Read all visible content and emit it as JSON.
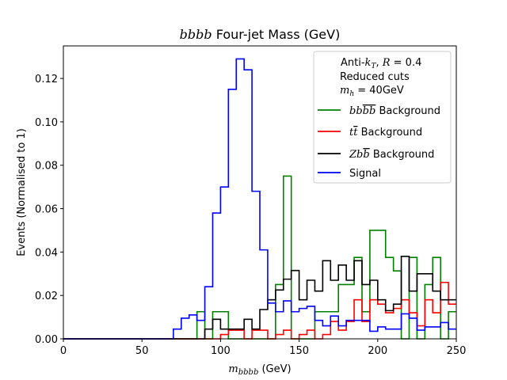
{
  "chart_data": {
    "type": "line",
    "drawstyle": "steps",
    "title": {
      "italic": "bbbb",
      "rest": " Four-jet Mass (GeV)"
    },
    "xlabel": {
      "italic": "m",
      "sub": "bbbb",
      "rest": " (GeV)"
    },
    "ylabel": "Events (Normalised to 1)",
    "xlim": [
      0,
      250
    ],
    "ylim": [
      0,
      0.135
    ],
    "xticks": [
      0,
      50,
      100,
      150,
      200,
      250
    ],
    "xtick_labels": [
      "0",
      "50",
      "100",
      "150",
      "200",
      "250"
    ],
    "yticks": [
      0.0,
      0.02,
      0.04,
      0.06,
      0.08,
      0.1,
      0.12
    ],
    "ytick_labels": [
      "0.00",
      "0.02",
      "0.04",
      "0.06",
      "0.08",
      "0.10",
      "0.12"
    ],
    "grid": false,
    "legend_position": "top-right",
    "annotation": {
      "line1": "Anti-k_T, R = 0.4",
      "line2": "Reduced cuts",
      "line3": "m_h = 40GeV"
    },
    "bin_width": 5,
    "bin_edges_start": 0,
    "series": [
      {
        "name": "bbbb Background",
        "color": "#008000",
        "values": [
          0,
          0,
          0,
          0,
          0,
          0,
          0,
          0,
          0,
          0,
          0,
          0,
          0,
          0,
          0,
          0,
          0,
          0.0125,
          0,
          0.0125,
          0.0125,
          0,
          0,
          0,
          0,
          0,
          0,
          0.025,
          0.075,
          0,
          0,
          0,
          0.0125,
          0.0125,
          0.0125,
          0.025,
          0.025,
          0.0375,
          0.0125,
          0.05,
          0.05,
          0.0375,
          0.0313,
          0,
          0.0375,
          0,
          0.025,
          0.0375,
          0,
          0.0125
        ]
      },
      {
        "name": "tt Background",
        "color": "#ff0000",
        "values": [
          0,
          0,
          0,
          0,
          0,
          0,
          0,
          0,
          0,
          0,
          0,
          0,
          0,
          0,
          0,
          0,
          0,
          0,
          0,
          0,
          0.002,
          0.004,
          0.004,
          0,
          0.004,
          0.004,
          0,
          0.002,
          0.004,
          0,
          0.002,
          0.004,
          0,
          0.002,
          0.008,
          0.004,
          0.008,
          0.018,
          0.008,
          0.018,
          0.016,
          0.012,
          0.014,
          0.018,
          0.012,
          0.006,
          0.018,
          0.012,
          0.026,
          0.016
        ]
      },
      {
        "name": "Zbb Background",
        "color": "#000000",
        "values": [
          0,
          0,
          0,
          0,
          0,
          0,
          0,
          0,
          0,
          0,
          0,
          0,
          0,
          0,
          0,
          0,
          0,
          0,
          0.0045,
          0.009,
          0.0045,
          0.0045,
          0.0045,
          0.009,
          0.0045,
          0.0135,
          0.018,
          0.0225,
          0.0275,
          0.0315,
          0.018,
          0.027,
          0.022,
          0.036,
          0.027,
          0.034,
          0.027,
          0.036,
          0.025,
          0.027,
          0.018,
          0.013,
          0.016,
          0.038,
          0.022,
          0.03,
          0.03,
          0.022,
          0.018,
          0.018
        ]
      },
      {
        "name": "Signal",
        "color": "#0000ff",
        "values": [
          0,
          0,
          0,
          0,
          0,
          0,
          0,
          0,
          0,
          0,
          0,
          0,
          0,
          0,
          0.0045,
          0.0095,
          0.011,
          0.0085,
          0.024,
          0.058,
          0.07,
          0.115,
          0.129,
          0.124,
          0.068,
          0.041,
          0.0165,
          0.0125,
          0.0175,
          0.0125,
          0.014,
          0.015,
          0.0085,
          0.006,
          0.0105,
          0.006,
          0.0085,
          0.0085,
          0.0085,
          0.0035,
          0.0055,
          0.0045,
          0.0045,
          0.0115,
          0.0095,
          0.004,
          0.0055,
          0.0055,
          0.0075,
          0.0045
        ]
      }
    ]
  }
}
